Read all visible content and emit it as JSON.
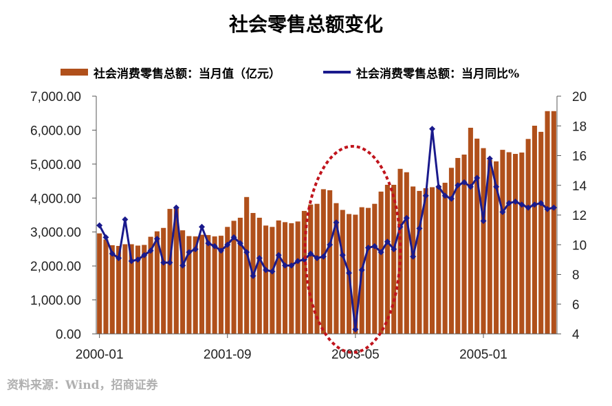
{
  "chart_data": {
    "type": "bar",
    "title": "社会零售总额变化",
    "source": "资料来源：Wind，招商证券",
    "legend": {
      "position": "top",
      "bar_label": "社会消费零售总额：当月值（亿元）",
      "line_label": "社会消费零售总额：当月同比%"
    },
    "y_left": {
      "min": 0,
      "max": 7000,
      "ticks": [
        "0.00",
        "1,000.00",
        "2,000.00",
        "3,000.00",
        "4,000.00",
        "5,000.00",
        "6,000.00",
        "7,000.00"
      ]
    },
    "y_right": {
      "min": 4,
      "max": 20,
      "ticks": [
        "4",
        "6",
        "8",
        "10",
        "12",
        "14",
        "16",
        "18",
        "20"
      ]
    },
    "x_labels": [
      {
        "label": "2000-01",
        "index": 0
      },
      {
        "label": "2001-09",
        "index": 20
      },
      {
        "label": "2003-05",
        "index": 40
      },
      {
        "label": "2005-01",
        "index": 60
      }
    ],
    "months": 72,
    "grid": false,
    "colors": {
      "bar": "#b0501b",
      "line": "#1a1a8c",
      "highlight": "#c0141c"
    },
    "highlight_ellipse": {
      "center_index": 40,
      "span_months": 12,
      "note": "SARS dip"
    },
    "series": [
      {
        "name": "社会消费零售总额：当月值（亿元）",
        "type": "bar",
        "values": [
          2960,
          2780,
          2610,
          2590,
          2640,
          2640,
          2600,
          2620,
          2860,
          3020,
          3120,
          3680,
          3710,
          3050,
          2880,
          2870,
          2920,
          2910,
          2870,
          2890,
          3150,
          3330,
          3420,
          4030,
          3560,
          3420,
          3190,
          3150,
          3340,
          3290,
          3260,
          3310,
          3620,
          3810,
          3830,
          4260,
          4230,
          3850,
          3650,
          3530,
          3510,
          3730,
          3710,
          3830,
          4190,
          4390,
          4390,
          4860,
          4760,
          4340,
          4210,
          4290,
          4320,
          4330,
          4450,
          4890,
          5180,
          5280,
          6070,
          5750,
          5470,
          5120,
          5080,
          5420,
          5350,
          5300,
          5340,
          5740,
          6130,
          5950,
          6560,
          6560
        ]
      },
      {
        "name": "社会消费零售总额：当月同比%",
        "type": "line",
        "values": [
          11.3,
          10.5,
          9.4,
          9.1,
          11.7,
          8.9,
          9.0,
          9.3,
          9.6,
          10.4,
          8.8,
          8.8,
          12.5,
          8.6,
          9.5,
          9.7,
          11.2,
          10.1,
          9.9,
          9.6,
          10.0,
          10.5,
          10.1,
          9.5,
          7.9,
          9.1,
          8.3,
          8.2,
          9.3,
          8.6,
          8.6,
          8.9,
          9.0,
          9.4,
          9.1,
          9.2,
          10.0,
          11.5,
          9.3,
          8.1,
          4.3,
          8.3,
          9.8,
          9.9,
          9.5,
          10.2,
          9.7,
          11.2,
          11.8,
          9.2,
          11.1,
          13.3,
          17.8,
          13.9,
          13.3,
          13.1,
          14.0,
          14.2,
          13.9,
          14.5,
          11.6,
          15.8,
          13.9,
          12.2,
          12.8,
          12.9,
          12.7,
          12.5,
          12.7,
          12.8,
          12.4,
          12.5
        ]
      }
    ]
  }
}
